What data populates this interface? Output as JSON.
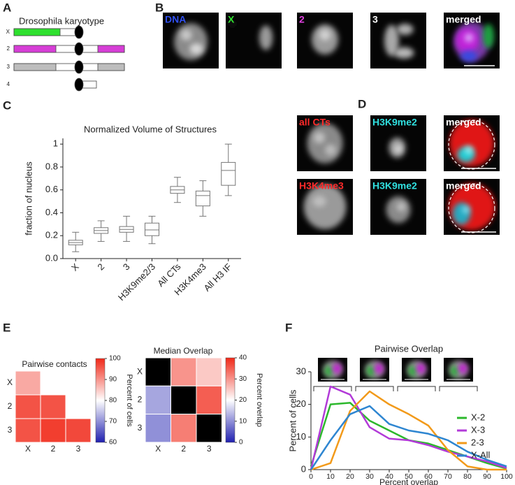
{
  "panel_labels": [
    "A",
    "B",
    "C",
    "D",
    "E",
    "F"
  ],
  "karyotype": {
    "title": "Drosophila karyotype",
    "chromosomes": [
      "X",
      "2",
      "3",
      "4"
    ]
  },
  "micrographs_b": [
    "DNA",
    "X",
    "2",
    "3",
    "merged"
  ],
  "micrographs_d": [
    [
      "all CTs",
      "H3K9me2",
      "merged"
    ],
    [
      "H3K4me3",
      "H3K9me2",
      "merged"
    ]
  ],
  "chart_data": [
    {
      "type": "box",
      "title": "Normalized Volume of Structures",
      "y_label": "fraction of nucleus",
      "categories": [
        "X",
        "2",
        "3",
        "H3K9me2/3",
        "All CTs",
        "H3K4me3",
        "All H3 IF"
      ],
      "values": [
        [
          0.06,
          0.12,
          0.14,
          0.16,
          0.23
        ],
        [
          0.15,
          0.22,
          0.245,
          0.27,
          0.33
        ],
        [
          0.15,
          0.23,
          0.255,
          0.28,
          0.37
        ],
        [
          0.13,
          0.2,
          0.25,
          0.31,
          0.37
        ],
        [
          0.49,
          0.57,
          0.6,
          0.63,
          0.71
        ],
        [
          0.37,
          0.46,
          0.55,
          0.59,
          0.68
        ],
        [
          0.55,
          0.64,
          0.77,
          0.84,
          1.0
        ]
      ],
      "color": "#777777",
      "ylim": [
        0,
        1.05
      ],
      "yticks": [
        {
          "value": 0,
          "label": "0.0"
        },
        0.2,
        0.4,
        0.6,
        0.8,
        1.0
      ]
    },
    {
      "type": "heatmap",
      "title": "Pairwise contacts",
      "x_categories": [
        "X",
        "2",
        "3"
      ],
      "y_categories": [
        "X",
        "2",
        "3"
      ],
      "values": [
        [
          88,
          null,
          null
        ],
        [
          96,
          96,
          null
        ],
        [
          96,
          98,
          97
        ]
      ],
      "zlim": [
        60,
        100
      ],
      "zticks": [
        60,
        70,
        80,
        90,
        100
      ],
      "colorbar_label": "Percent of cells",
      "colormap": [
        "#2020b0",
        "#ffffff",
        "#f02818"
      ]
    },
    {
      "type": "heatmap",
      "title": "Median Overlap",
      "x_categories": [
        "X",
        "2",
        "3"
      ],
      "y_categories": [
        "X",
        "2",
        "3"
      ],
      "values": [
        [
          null,
          30,
          25
        ],
        [
          12,
          null,
          35
        ],
        [
          10,
          32,
          null
        ]
      ],
      "zlim": [
        0,
        40
      ],
      "zticks": [
        0,
        10,
        20,
        30,
        40
      ],
      "colorbar_label": "Percent overlap",
      "colormap": [
        "#2020b0",
        "#ffffff",
        "#f02818"
      ],
      "null_color": "#000000"
    },
    {
      "type": "line",
      "title": "Pairwise Overlap",
      "x_label": "Percent overlap",
      "y_label": "Percent of cells",
      "x": [
        0,
        10,
        20,
        30,
        40,
        50,
        60,
        70,
        80,
        90,
        100
      ],
      "series": [
        {
          "name": "X-2",
          "color": "#2cb82c",
          "values": [
            1,
            20,
            20.5,
            15,
            12,
            9,
            8,
            6,
            4,
            2,
            0.3
          ]
        },
        {
          "name": "X-3",
          "color": "#b23ad8",
          "values": [
            0,
            25.5,
            23,
            13,
            9.5,
            9,
            7.5,
            5.5,
            4,
            2.5,
            0.5
          ]
        },
        {
          "name": "2-3",
          "color": "#f29a1a",
          "values": [
            0,
            2,
            18,
            24,
            20,
            17,
            13.5,
            6,
            1,
            0,
            0
          ]
        },
        {
          "name": "X-All",
          "color": "#2e86d1",
          "values": [
            0,
            9,
            17,
            19.5,
            14,
            12,
            11,
            9,
            5.5,
            3,
            1
          ]
        }
      ],
      "xlim": [
        0,
        100
      ],
      "xticks": [
        0,
        10,
        20,
        30,
        40,
        50,
        60,
        70,
        80,
        90,
        100
      ],
      "ylim": [
        0,
        30
      ],
      "yticks": [
        0,
        10,
        20,
        30
      ],
      "legend": "right"
    }
  ]
}
